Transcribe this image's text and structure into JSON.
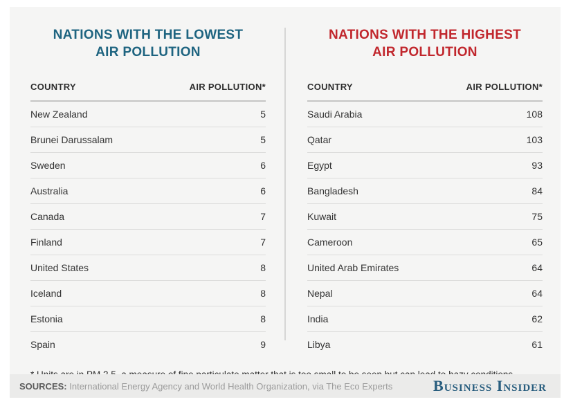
{
  "colors": {
    "lowest_title": "#1e6480",
    "highest_title": "#c1272d",
    "panel_background": "#f5f5f4",
    "footer_background": "#ebebea",
    "logo_blue": "#285d7e"
  },
  "chart_data": [
    {
      "type": "table",
      "title": "NATIONS WITH THE LOWEST AIR POLLUTION",
      "title_lines": [
        "NATIONS WITH THE LOWEST",
        "AIR POLLUTION"
      ],
      "columns": [
        "COUNTRY",
        "AIR POLLUTION*"
      ],
      "rows": [
        {
          "country": "New Zealand",
          "value": "5"
        },
        {
          "country": "Brunei Darussalam",
          "value": "5"
        },
        {
          "country": "Sweden",
          "value": "6"
        },
        {
          "country": "Australia",
          "value": "6"
        },
        {
          "country": "Canada",
          "value": "7"
        },
        {
          "country": "Finland",
          "value": "7"
        },
        {
          "country": "United States",
          "value": "8"
        },
        {
          "country": "Iceland",
          "value": "8"
        },
        {
          "country": "Estonia",
          "value": "8"
        },
        {
          "country": "Spain",
          "value": "9"
        }
      ]
    },
    {
      "type": "table",
      "title": "NATIONS WITH THE HIGHEST AIR POLLUTION",
      "title_lines": [
        "NATIONS WITH THE HIGHEST",
        "AIR POLLUTION"
      ],
      "columns": [
        "COUNTRY",
        "AIR POLLUTION*"
      ],
      "rows": [
        {
          "country": "Saudi Arabia",
          "value": "108"
        },
        {
          "country": "Qatar",
          "value": "103"
        },
        {
          "country": "Egypt",
          "value": "93"
        },
        {
          "country": "Bangladesh",
          "value": "84"
        },
        {
          "country": "Kuwait",
          "value": "75"
        },
        {
          "country": "Cameroon",
          "value": "65"
        },
        {
          "country": "United Arab Emirates",
          "value": "64"
        },
        {
          "country": "Nepal",
          "value": "64"
        },
        {
          "country": "India",
          "value": "62"
        },
        {
          "country": "Libya",
          "value": "61"
        }
      ]
    }
  ],
  "footnote": "* Units are in PM 2.5, a measure of fine particulate matter that is too small to be seen but can lead to hazy conditions.",
  "footer": {
    "sources_label": "SOURCES:",
    "sources_text": " International Energy Agency and World Health Organization, via The Eco Experts",
    "logo": "Business Insider"
  }
}
